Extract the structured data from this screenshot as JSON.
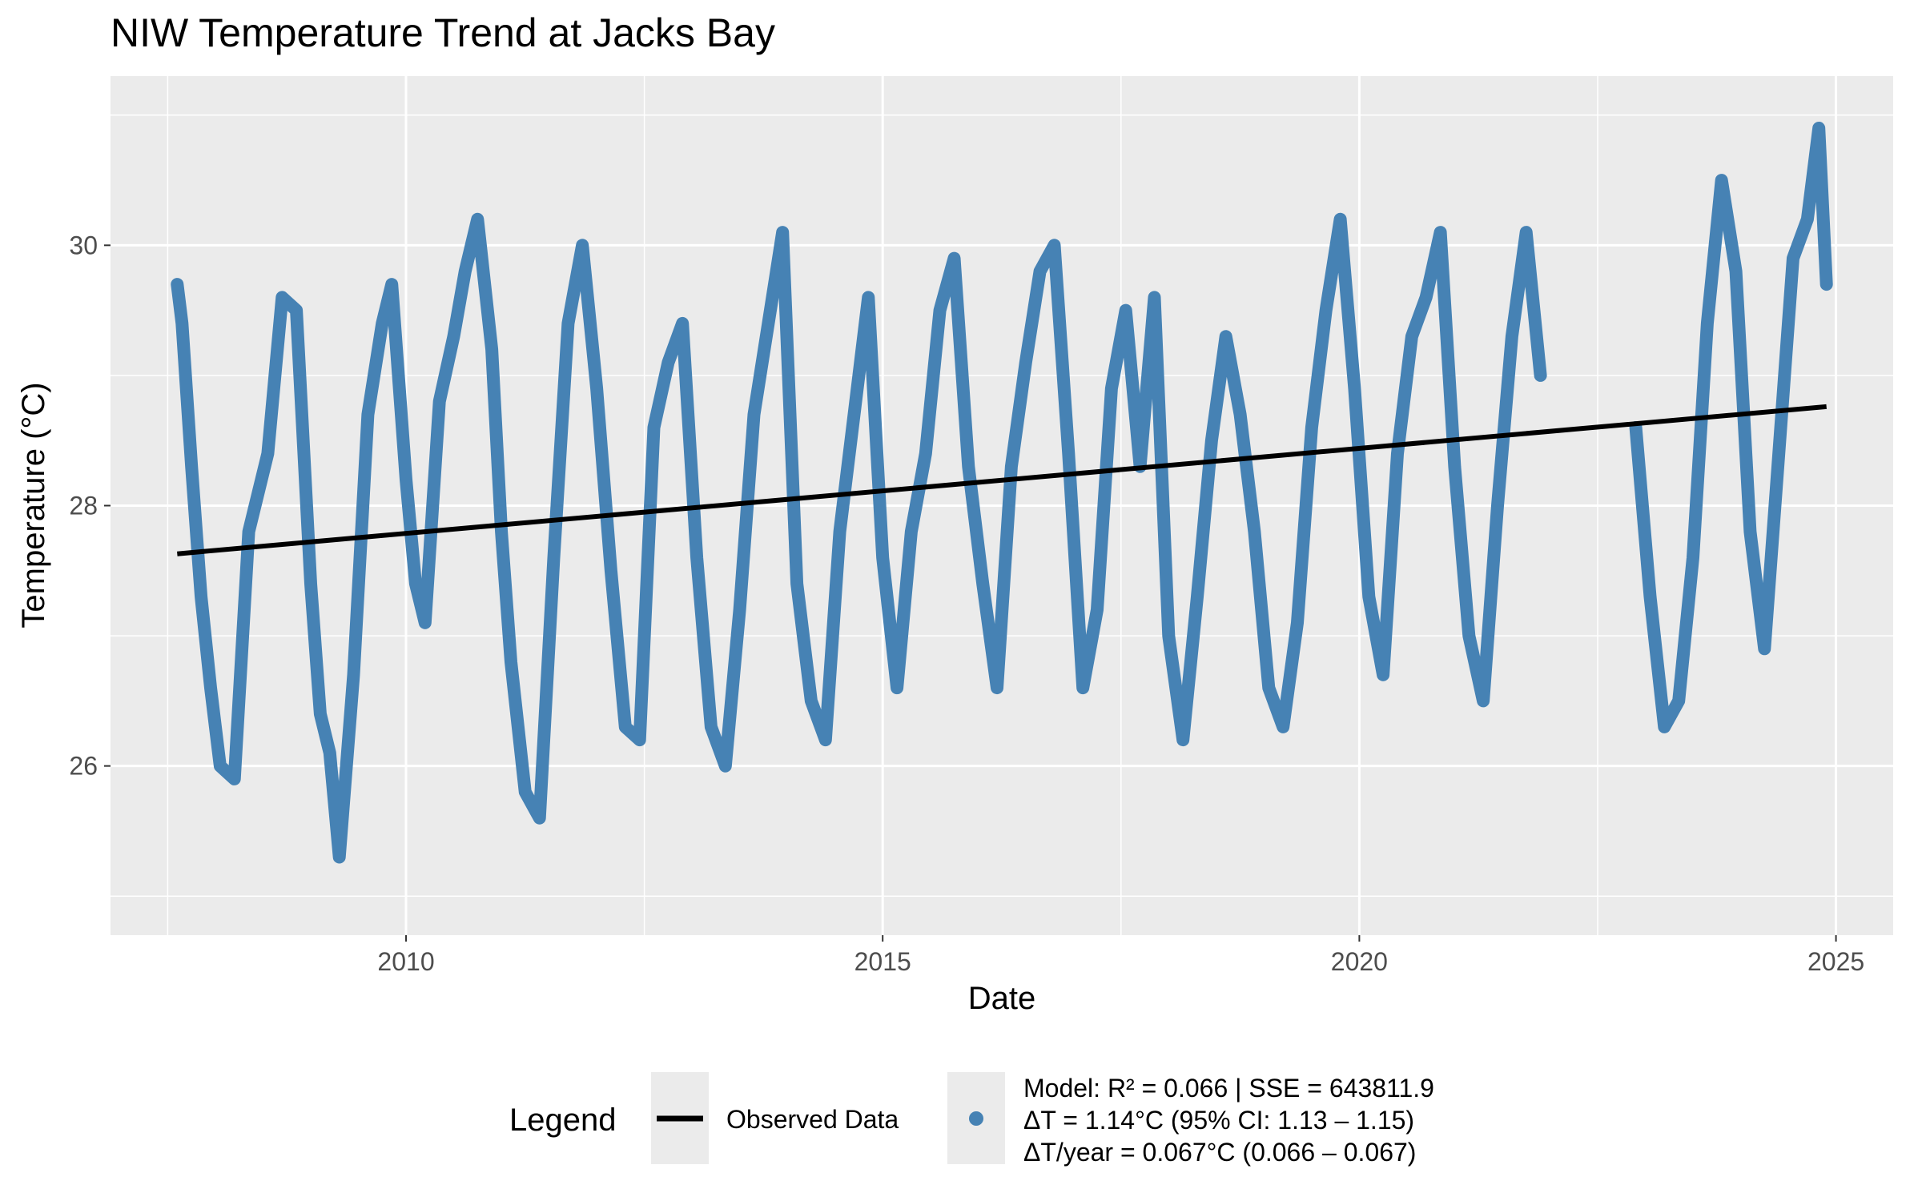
{
  "chart_data": {
    "type": "line",
    "title": "NIW Temperature Trend at Jacks Bay",
    "xlabel": "Date",
    "ylabel": "Temperature (°C)",
    "x_ticks": [
      "2010",
      "2015",
      "2020",
      "2025"
    ],
    "y_ticks": [
      "26",
      "28",
      "30"
    ],
    "xlim": [
      2006.9,
      2025.6
    ],
    "ylim": [
      24.7,
      31.3
    ],
    "grid": true,
    "legend_position": "bottom",
    "legend": {
      "title": "Legend",
      "line_label": "Observed Data",
      "point_label_lines": [
        "Model: R² = 0.066 | SSE = 643811.9",
        "ΔT = 1.14°C (95% CI: 1.13 – 1.15)",
        "ΔT/year = 0.067°C (0.066 – 0.067)"
      ]
    },
    "series": [
      {
        "kind": "observed",
        "color": "#4682B4",
        "x": [
          2007.6,
          2007.65,
          2007.75,
          2007.85,
          2007.95,
          2008.05,
          2008.2,
          2008.35,
          2008.55,
          2008.7,
          2008.85,
          2009.0,
          2009.1,
          2009.2,
          2009.3,
          2009.45,
          2009.6,
          2009.75,
          2009.85,
          2010.0,
          2010.1,
          2010.2,
          2010.35,
          2010.5,
          2010.62,
          2010.75,
          2010.9,
          2011.0,
          2011.1,
          2011.25,
          2011.4,
          2011.55,
          2011.7,
          2011.85,
          2012.0,
          2012.15,
          2012.3,
          2012.45,
          2012.6,
          2012.75,
          2012.9,
          2013.05,
          2013.2,
          2013.35,
          2013.5,
          2013.65,
          2013.8,
          2013.95,
          2014.1,
          2014.25,
          2014.4,
          2014.55,
          2014.7,
          2014.85,
          2015.0,
          2015.15,
          2015.3,
          2015.45,
          2015.6,
          2015.75,
          2015.9,
          2016.05,
          2016.2,
          2016.35,
          2016.5,
          2016.65,
          2016.8,
          2016.95,
          2017.1,
          2017.25,
          2017.4,
          2017.55,
          2017.7,
          2017.85,
          2018.0,
          2018.15,
          2018.3,
          2018.45,
          2018.6,
          2018.75,
          2018.9,
          2019.05,
          2019.2,
          2019.35,
          2019.5,
          2019.65,
          2019.8,
          2019.95,
          2020.1,
          2020.25,
          2020.4,
          2020.55,
          2020.7,
          2020.85,
          2021.0,
          2021.15,
          2021.3,
          2021.45,
          2021.6,
          2021.75,
          2021.9
        ],
        "y": [
          29.7,
          29.4,
          28.3,
          27.3,
          26.6,
          26.0,
          25.9,
          27.8,
          28.4,
          29.6,
          29.5,
          27.4,
          26.4,
          26.1,
          25.3,
          26.7,
          28.7,
          29.4,
          29.7,
          28.2,
          27.4,
          27.1,
          28.8,
          29.3,
          29.8,
          30.2,
          29.2,
          27.8,
          26.8,
          25.8,
          25.6,
          27.6,
          29.4,
          30.0,
          28.9,
          27.5,
          26.3,
          26.2,
          28.6,
          29.1,
          29.4,
          27.6,
          26.3,
          26.0,
          27.2,
          28.7,
          29.4,
          30.1,
          27.4,
          26.5,
          26.2,
          27.8,
          28.7,
          29.6,
          27.6,
          26.6,
          27.8,
          28.4,
          29.5,
          29.9,
          28.3,
          27.4,
          26.6,
          28.3,
          29.1,
          29.8,
          30.0,
          28.4,
          26.6,
          27.2,
          28.9,
          29.5,
          28.3,
          29.6,
          27.0,
          26.2,
          27.3,
          28.5,
          29.3,
          28.7,
          27.8,
          26.6,
          26.3,
          27.1,
          28.6,
          29.5,
          30.2,
          28.9,
          27.3,
          26.7,
          28.4,
          29.3,
          29.6,
          30.1,
          28.3,
          27.0,
          26.5,
          28.0,
          29.3,
          30.1,
          29.0
        ]
      },
      {
        "kind": "observed",
        "color": "#4682B4",
        "x": [
          2022.9,
          2023.05,
          2023.2,
          2023.35,
          2023.5,
          2023.65,
          2023.8,
          2023.95,
          2024.1,
          2024.25,
          2024.4,
          2024.55,
          2024.7,
          2024.82,
          2024.9
        ],
        "y": [
          28.6,
          27.3,
          26.3,
          26.5,
          27.6,
          29.4,
          30.5,
          29.8,
          27.8,
          26.9,
          28.4,
          29.9,
          30.2,
          30.9,
          29.7
        ]
      },
      {
        "kind": "trend",
        "color": "#000000",
        "x": [
          2007.6,
          2024.9
        ],
        "y": [
          27.63,
          28.76
        ]
      }
    ]
  }
}
